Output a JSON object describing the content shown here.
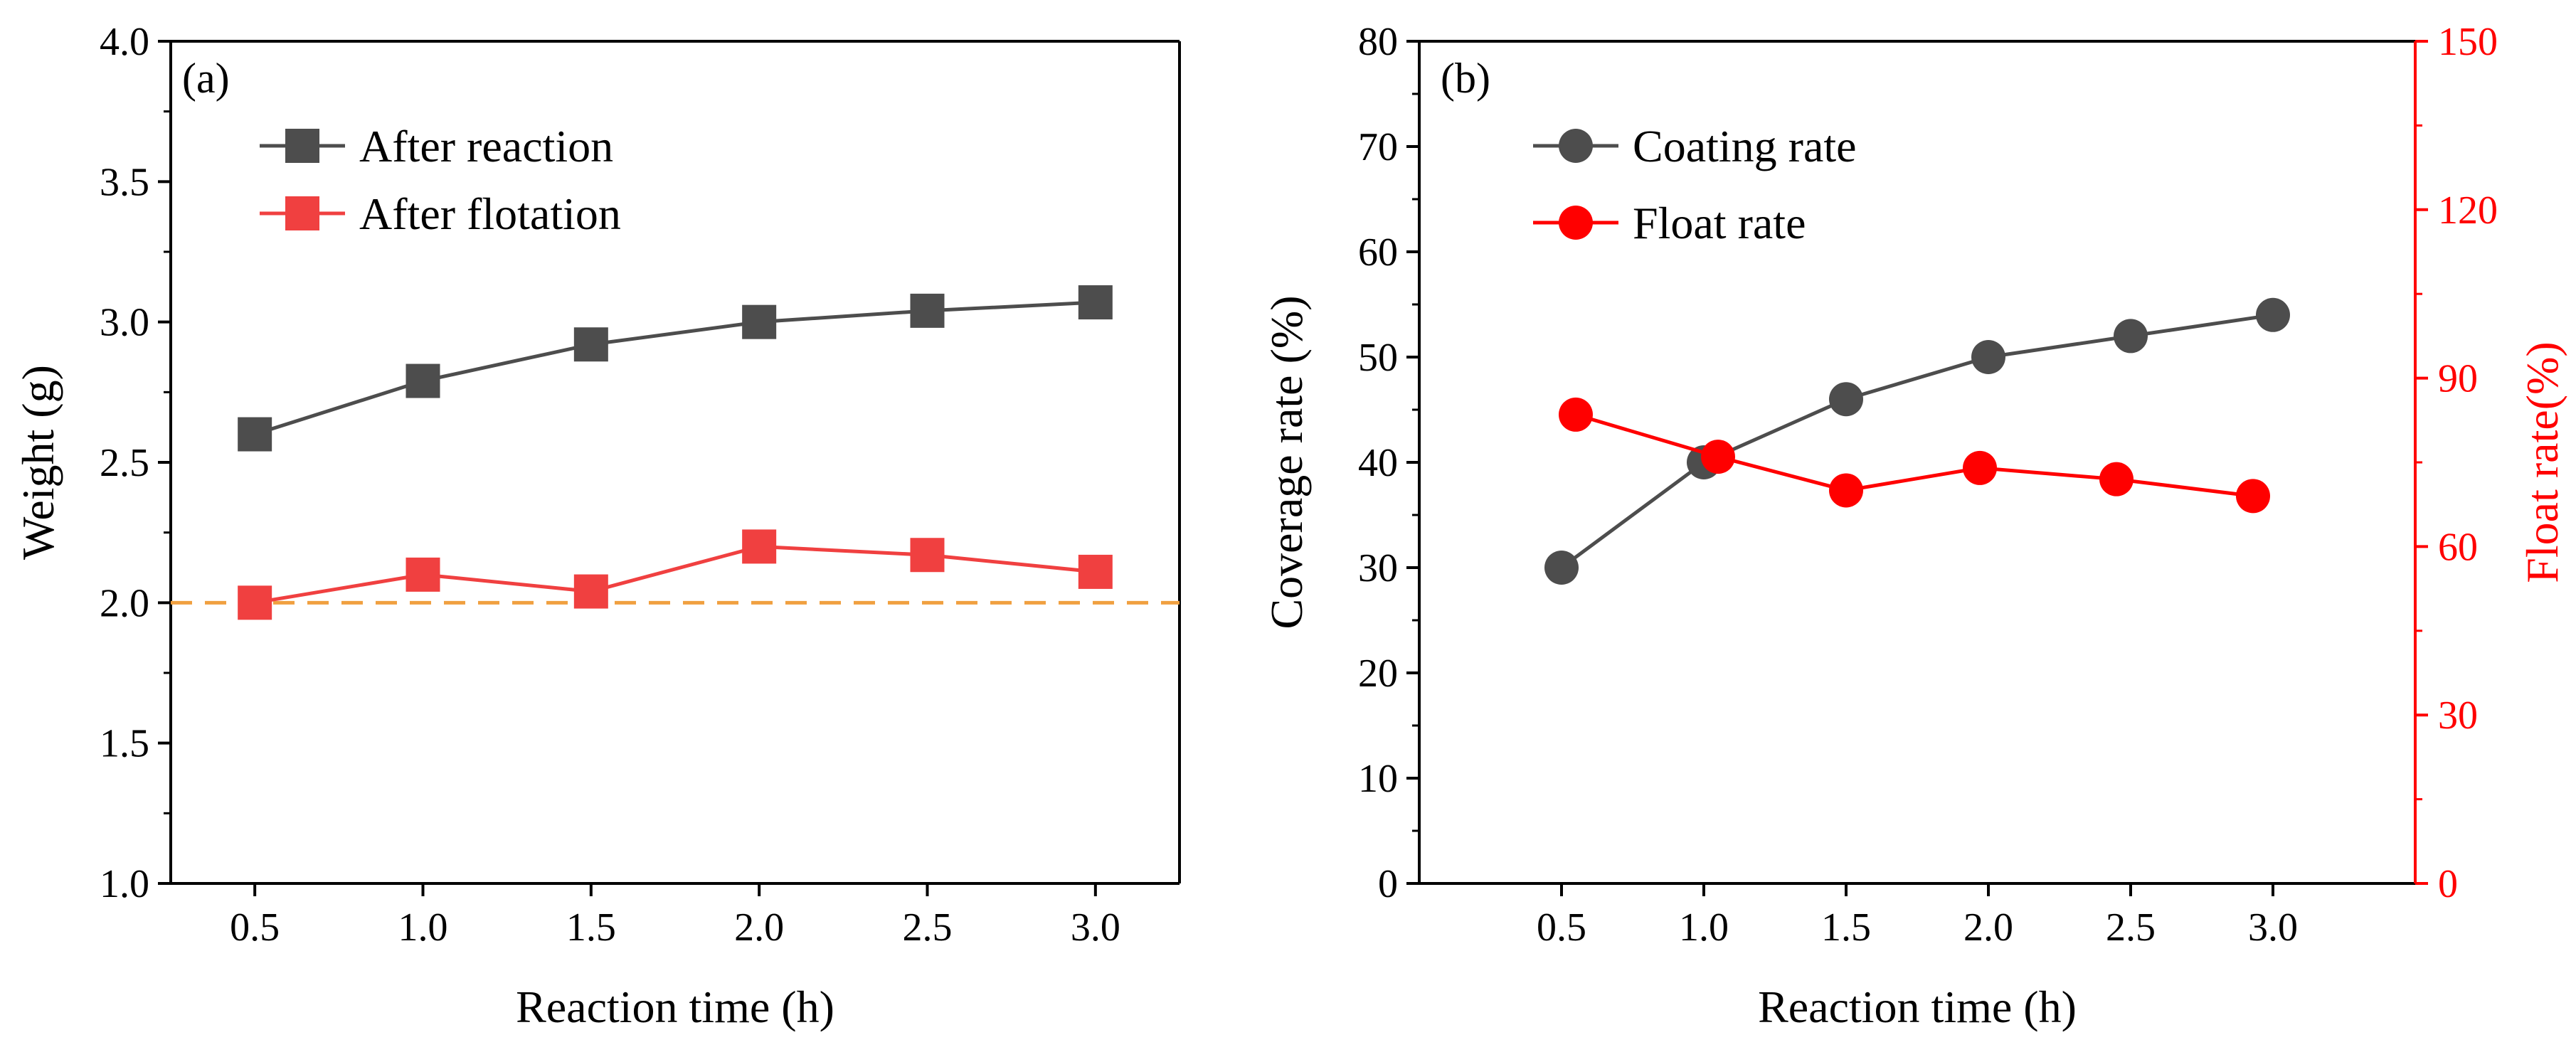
{
  "chart_data": [
    {
      "type": "line",
      "panel_label": "(a)",
      "xlabel": "Reaction time (h)",
      "ylabel": "Weight (g)",
      "xlim": [
        0.25,
        3.25
      ],
      "ylim": [
        1.0,
        4.0
      ],
      "xticks": [
        "0.5",
        "1.0",
        "1.5",
        "2.0",
        "2.5",
        "3.0"
      ],
      "yticks": [
        "1.0",
        "1.5",
        "2.0",
        "2.5",
        "3.0",
        "3.5",
        "4.0"
      ],
      "series": [
        {
          "name": "After reaction",
          "color": "#4d4d4d",
          "marker": "square",
          "x": [
            0.5,
            1.0,
            1.5,
            2.0,
            2.5,
            3.0
          ],
          "values": [
            2.6,
            2.79,
            2.92,
            3.0,
            3.04,
            3.07
          ]
        },
        {
          "name": "After flotation",
          "color": "#f04040",
          "marker": "square",
          "x": [
            0.5,
            1.0,
            1.5,
            2.0,
            2.5,
            3.0
          ],
          "values": [
            2.0,
            2.1,
            2.04,
            2.2,
            2.17,
            2.11
          ]
        }
      ],
      "reference_line": {
        "y": 2.0,
        "style": "dashed",
        "color": "#f0a040"
      },
      "legend_position": "top-left"
    },
    {
      "type": "line",
      "panel_label": "(b)",
      "xlabel": "Reaction time (h)",
      "ylabel": "Coverage rate (%)",
      "ylabel_right": "Float rate(%)",
      "xlim": [
        0.0,
        3.5
      ],
      "ylim": [
        0,
        80
      ],
      "ylim_right": [
        0,
        150
      ],
      "xticks": [
        "0.5",
        "1.0",
        "1.5",
        "2.0",
        "2.5",
        "3.0"
      ],
      "yticks": [
        "0",
        "10",
        "20",
        "30",
        "40",
        "50",
        "60",
        "70",
        "80"
      ],
      "yticks_right": [
        "0",
        "30",
        "60",
        "90",
        "120",
        "150"
      ],
      "right_axis_color": "#ff0000",
      "series": [
        {
          "name": "Coating rate",
          "color": "#4d4d4d",
          "marker": "circle",
          "axis": "left",
          "x": [
            0.5,
            1.0,
            1.5,
            2.0,
            2.5,
            3.0
          ],
          "values": [
            30,
            40,
            46,
            50,
            52,
            54
          ]
        },
        {
          "name": "Float rate",
          "color": "#ff0000",
          "marker": "circle",
          "axis": "right",
          "x": [
            0.55,
            1.05,
            1.5,
            1.97,
            2.45,
            2.93
          ],
          "values": [
            83.5,
            76.0,
            70.0,
            74.0,
            72.0,
            69.0
          ]
        }
      ],
      "legend_position": "top-left"
    }
  ]
}
